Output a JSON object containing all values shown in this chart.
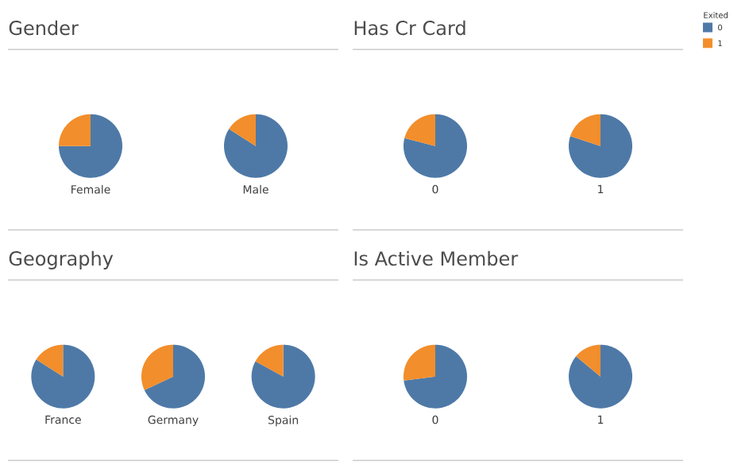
{
  "chart_data": [
    {
      "type": "pie",
      "title": "Gender",
      "colors": [
        "#4e79a7",
        "#f28e2b"
      ],
      "series": [
        {
          "name": "Female",
          "values": [
            75,
            25
          ]
        },
        {
          "name": "Male",
          "values": [
            84,
            16
          ]
        }
      ]
    },
    {
      "type": "pie",
      "title": "Has Cr Card",
      "categories": [
        "0",
        "1"
      ],
      "colors": [
        "#4e79a7",
        "#f28e2b"
      ],
      "legend": "right",
      "legend_title": "Exited",
      "series": [
        {
          "name": "0",
          "values": [
            79,
            21
          ]
        },
        {
          "name": "1",
          "values": [
            80,
            20
          ]
        }
      ]
    },
    {
      "type": "pie",
      "title": "Geography",
      "colors": [
        "#4e79a7",
        "#f28e2b"
      ],
      "series": [
        {
          "name": "France",
          "values": [
            84,
            16
          ]
        },
        {
          "name": "Germany",
          "values": [
            68,
            32
          ]
        },
        {
          "name": "Spain",
          "values": [
            83,
            17
          ]
        }
      ]
    },
    {
      "type": "pie",
      "title": "Is Active Member",
      "colors": [
        "#4e79a7",
        "#f28e2b"
      ],
      "series": [
        {
          "name": "0",
          "values": [
            73,
            27
          ]
        },
        {
          "name": "1",
          "values": [
            86,
            14
          ]
        }
      ]
    }
  ]
}
